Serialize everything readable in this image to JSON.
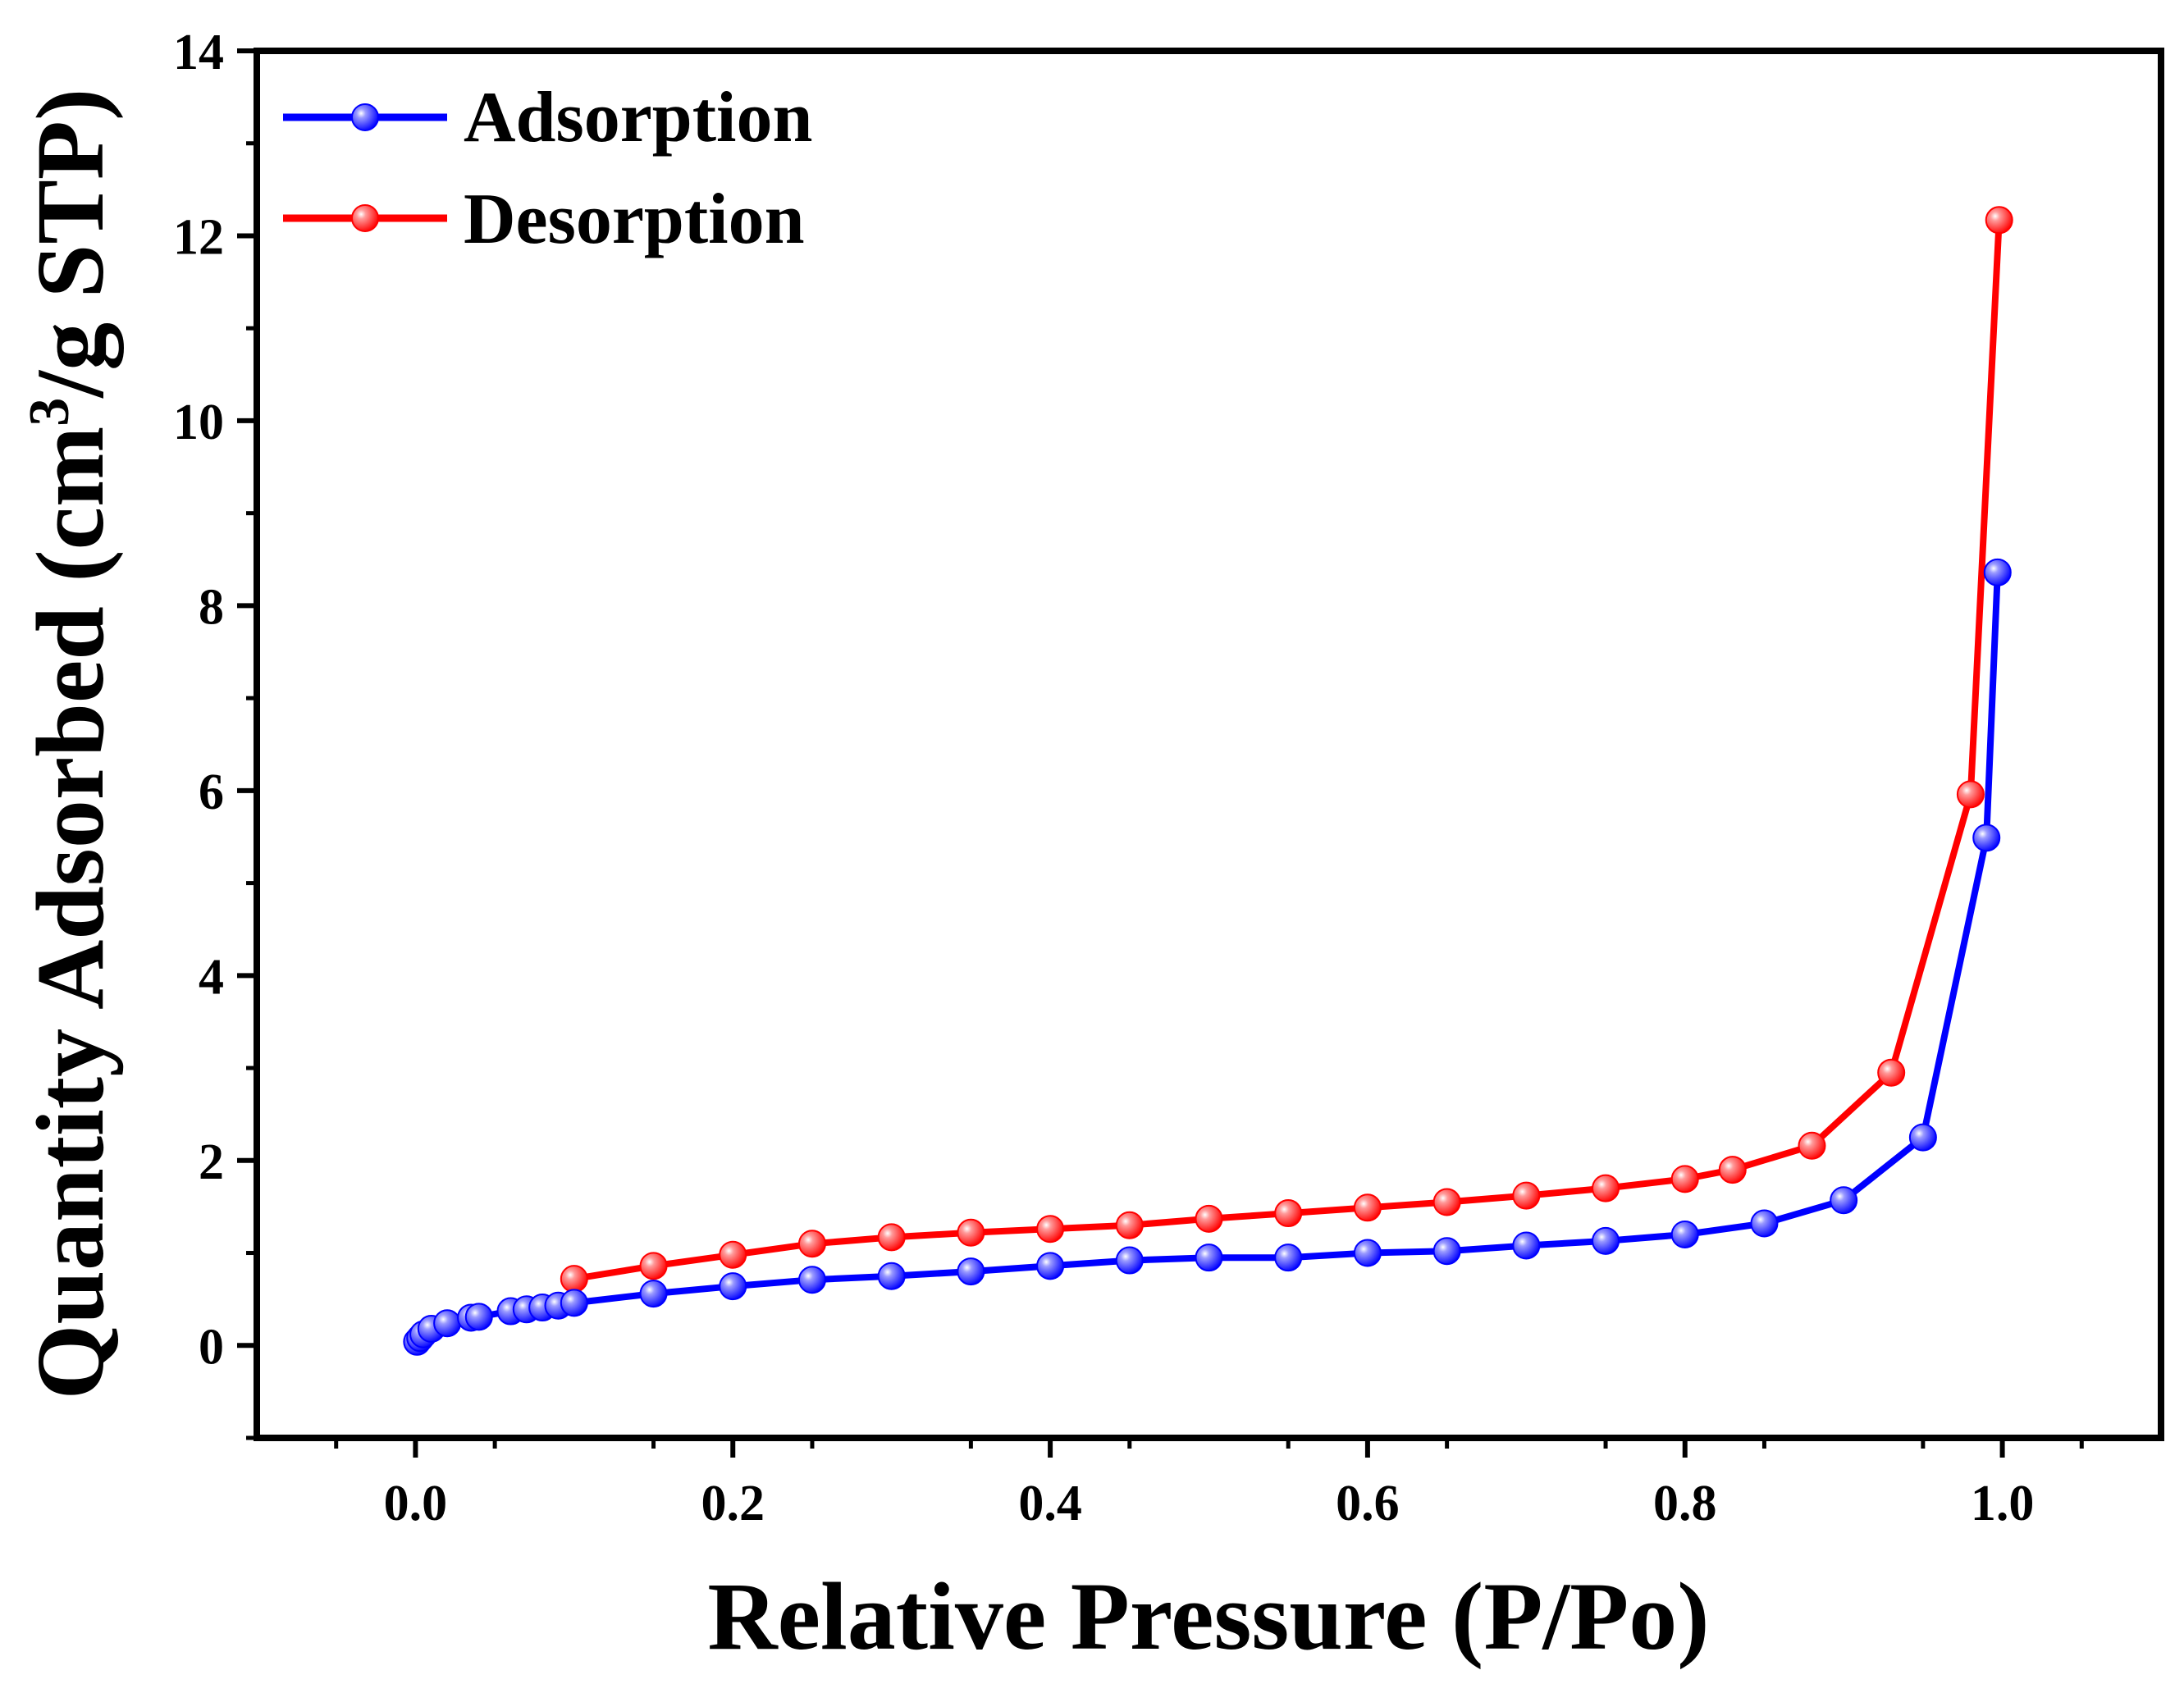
{
  "chart_data": {
    "type": "line",
    "title": "",
    "xlabel": "Relative Pressure (P/Po)",
    "ylabel_main": "Quantity Adsorbed (cm",
    "ylabel_sup": "3",
    "ylabel_end": "/g STP)",
    "xlim": [
      -0.1,
      1.1
    ],
    "ylim": [
      -1,
      14
    ],
    "x_ticks": [
      "0.0",
      "0.2",
      "0.4",
      "0.6",
      "0.8",
      "1.0"
    ],
    "x_tick_values": [
      0.0,
      0.2,
      0.4,
      0.6,
      0.8,
      1.0
    ],
    "y_ticks": [
      "0",
      "2",
      "4",
      "6",
      "8",
      "10",
      "12",
      "14"
    ],
    "y_tick_values": [
      0,
      2,
      4,
      6,
      8,
      10,
      12,
      14
    ],
    "grid": false,
    "legend_position": "top-left",
    "series": [
      {
        "name": "Adsorption",
        "color": "#0000ff",
        "x": [
          0.001,
          0.003,
          0.005,
          0.01,
          0.02,
          0.035,
          0.04,
          0.06,
          0.07,
          0.08,
          0.09,
          0.1,
          0.15,
          0.2,
          0.25,
          0.3,
          0.35,
          0.4,
          0.45,
          0.5,
          0.55,
          0.6,
          0.65,
          0.7,
          0.75,
          0.8,
          0.85,
          0.9,
          0.95,
          0.99,
          0.997
        ],
        "y": [
          0.04,
          0.08,
          0.12,
          0.18,
          0.24,
          0.3,
          0.31,
          0.37,
          0.39,
          0.41,
          0.43,
          0.46,
          0.56,
          0.64,
          0.71,
          0.75,
          0.8,
          0.86,
          0.92,
          0.95,
          0.95,
          1.0,
          1.02,
          1.08,
          1.13,
          1.2,
          1.32,
          1.57,
          2.25,
          5.49,
          8.36
        ]
      },
      {
        "name": "Desorption",
        "color": "#ff0000",
        "x": [
          0.998,
          0.98,
          0.93,
          0.88,
          0.83,
          0.8,
          0.75,
          0.7,
          0.65,
          0.6,
          0.55,
          0.5,
          0.45,
          0.4,
          0.35,
          0.3,
          0.25,
          0.2,
          0.15,
          0.1
        ],
        "y": [
          12.17,
          5.96,
          2.95,
          2.16,
          1.9,
          1.8,
          1.7,
          1.62,
          1.55,
          1.49,
          1.43,
          1.37,
          1.3,
          1.26,
          1.22,
          1.17,
          1.1,
          0.98,
          0.86,
          0.72
        ]
      }
    ]
  }
}
